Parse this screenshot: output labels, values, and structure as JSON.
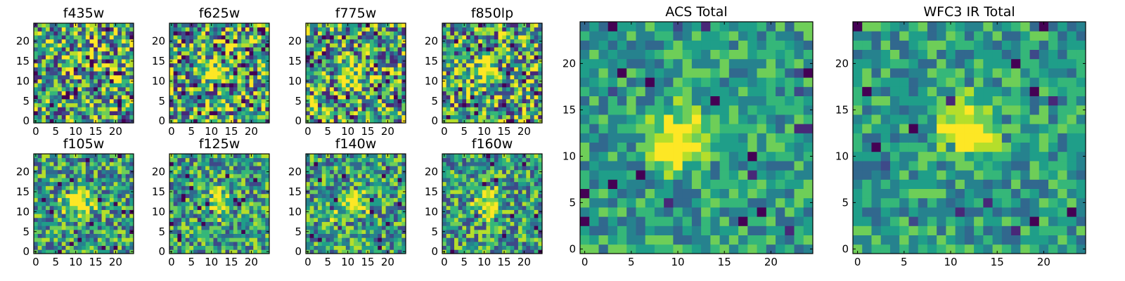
{
  "chart_data": [
    {
      "type": "heatmap",
      "title": "f435w",
      "x_ticks": [
        "0",
        "5",
        "10",
        "15",
        "20"
      ],
      "y_ticks": [
        "0",
        "5",
        "10",
        "15",
        "20"
      ],
      "xlim": [
        0,
        24
      ],
      "ylim": [
        0,
        24
      ],
      "colormap": "viridis",
      "bright_center": null,
      "noise": "high"
    },
    {
      "type": "heatmap",
      "title": "f625w",
      "x_ticks": [
        "0",
        "5",
        "10",
        "15",
        "20"
      ],
      "y_ticks": [
        "0",
        "5",
        "10",
        "15",
        "20"
      ],
      "xlim": [
        0,
        24
      ],
      "ylim": [
        0,
        24
      ],
      "colormap": "viridis",
      "bright_center": [
        10,
        12
      ],
      "noise": "high"
    },
    {
      "type": "heatmap",
      "title": "f775w",
      "x_ticks": [
        "0",
        "5",
        "10",
        "15",
        "20"
      ],
      "y_ticks": [
        "0",
        "5",
        "10",
        "15",
        "20"
      ],
      "xlim": [
        0,
        24
      ],
      "ylim": [
        0,
        24
      ],
      "colormap": "viridis",
      "bright_center": [
        10,
        12
      ],
      "noise": "high"
    },
    {
      "type": "heatmap",
      "title": "f850lp",
      "x_ticks": [
        "0",
        "5",
        "10",
        "15",
        "20"
      ],
      "y_ticks": [
        "0",
        "5",
        "10",
        "15",
        "20"
      ],
      "xlim": [
        0,
        24
      ],
      "ylim": [
        0,
        24
      ],
      "colormap": "viridis",
      "bright_center": [
        10,
        12
      ],
      "noise": "high"
    },
    {
      "type": "heatmap",
      "title": "f105w",
      "x_ticks": [
        "0",
        "5",
        "10",
        "15",
        "20"
      ],
      "y_ticks": [
        "0",
        "5",
        "10",
        "15",
        "20"
      ],
      "xlim": [
        0,
        24
      ],
      "ylim": [
        0,
        24
      ],
      "colormap": "viridis",
      "bright_center": [
        11,
        12
      ],
      "noise": "medium"
    },
    {
      "type": "heatmap",
      "title": "f125w",
      "x_ticks": [
        "0",
        "5",
        "10",
        "15",
        "20"
      ],
      "y_ticks": [
        "0",
        "5",
        "10",
        "15",
        "20"
      ],
      "xlim": [
        0,
        24
      ],
      "ylim": [
        0,
        24
      ],
      "colormap": "viridis",
      "bright_center": [
        12,
        12
      ],
      "noise": "medium"
    },
    {
      "type": "heatmap",
      "title": "f140w",
      "x_ticks": [
        "0",
        "5",
        "10",
        "15",
        "20"
      ],
      "y_ticks": [
        "0",
        "5",
        "10",
        "15",
        "20"
      ],
      "xlim": [
        0,
        24
      ],
      "ylim": [
        0,
        24
      ],
      "colormap": "viridis",
      "bright_center": [
        11,
        12
      ],
      "noise": "medium"
    },
    {
      "type": "heatmap",
      "title": "f160w",
      "x_ticks": [
        "0",
        "5",
        "10",
        "15",
        "20"
      ],
      "y_ticks": [
        "0",
        "5",
        "10",
        "15",
        "20"
      ],
      "xlim": [
        0,
        24
      ],
      "ylim": [
        0,
        24
      ],
      "colormap": "viridis",
      "bright_center": [
        11,
        12
      ],
      "noise": "medium"
    },
    {
      "type": "heatmap",
      "title": "ACS Total",
      "x_ticks": [
        "0",
        "5",
        "10",
        "15",
        "20"
      ],
      "y_ticks": [
        "0",
        "5",
        "10",
        "15",
        "20"
      ],
      "xlim": [
        0,
        24
      ],
      "ylim": [
        0,
        24
      ],
      "colormap": "viridis",
      "bright_center": [
        10,
        12
      ],
      "noise": "low"
    },
    {
      "type": "heatmap",
      "title": "WFC3 IR Total",
      "x_ticks": [
        "0",
        "5",
        "10",
        "15",
        "20"
      ],
      "y_ticks": [
        "0",
        "5",
        "10",
        "15",
        "20"
      ],
      "xlim": [
        0,
        24
      ],
      "ylim": [
        0,
        24
      ],
      "colormap": "viridis",
      "bright_center": [
        12,
        13
      ],
      "noise": "low"
    }
  ],
  "colors": {
    "viridis": [
      "#440154",
      "#482878",
      "#3e4989",
      "#31688e",
      "#26828e",
      "#1f9e89",
      "#35b779",
      "#6ece58",
      "#b5de2b",
      "#fde725"
    ]
  }
}
